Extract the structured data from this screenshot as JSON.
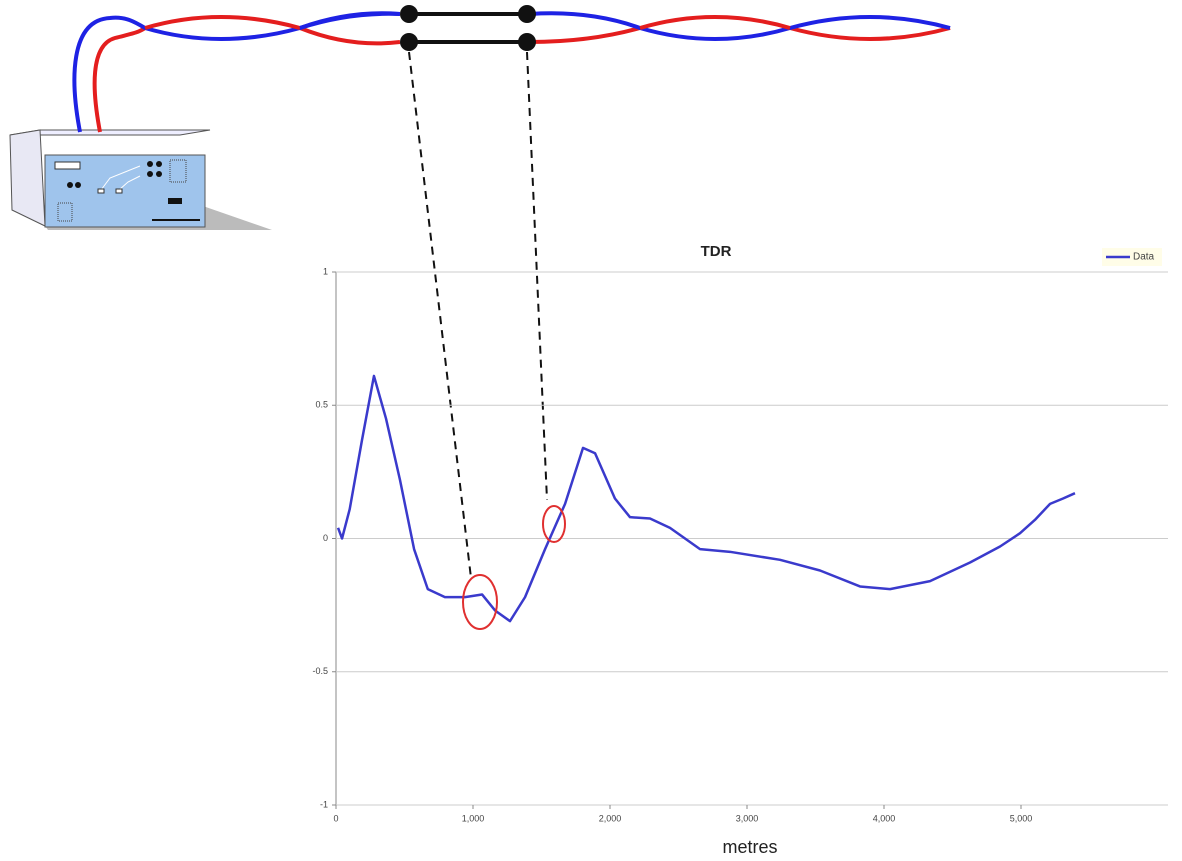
{
  "chart_data": {
    "type": "line",
    "title": "TDR",
    "x_label": "metres",
    "x": [
      15,
      44,
      100,
      190,
      277,
      365,
      467,
      570,
      670,
      795,
      942,
      1066,
      1161,
      1270,
      1380,
      1526,
      1672,
      1803,
      1891,
      2036,
      2146,
      2292,
      2438,
      2657,
      2876,
      3241,
      3533,
      3825,
      4044,
      4336,
      4628,
      4847,
      4993,
      5102,
      5212,
      5307,
      5394
    ],
    "series": [
      {
        "name": "Data",
        "color": "#3a3acc",
        "values": [
          0.04,
          0,
          0.11,
          0.37,
          0.61,
          0.45,
          0.22,
          -0.04,
          -0.19,
          -0.22,
          -0.22,
          -0.21,
          -0.27,
          -0.31,
          -0.22,
          -0.04,
          0.13,
          0.34,
          0.32,
          0.15,
          0.08,
          0.075,
          0.04,
          -0.04,
          -0.05,
          -0.08,
          -0.12,
          -0.18,
          -0.19,
          -0.16,
          -0.09,
          -0.03,
          0.02,
          0.07,
          0.13,
          0.15,
          0.17
        ]
      }
    ],
    "xlim": [
      0,
      6000
    ],
    "xticks": [
      0,
      {
        "value": 1000,
        "label": "1,000"
      },
      {
        "value": 2000,
        "label": "2,000"
      },
      {
        "value": 3000,
        "label": "3,000"
      },
      {
        "value": 4000,
        "label": "4,000"
      },
      {
        "value": 5000,
        "label": "5,000"
      }
    ],
    "ylim": [
      -1,
      1
    ],
    "yticks": [
      -1,
      -0.5,
      0,
      0.5,
      1
    ],
    "grid": true,
    "legend": "top-right"
  }
}
